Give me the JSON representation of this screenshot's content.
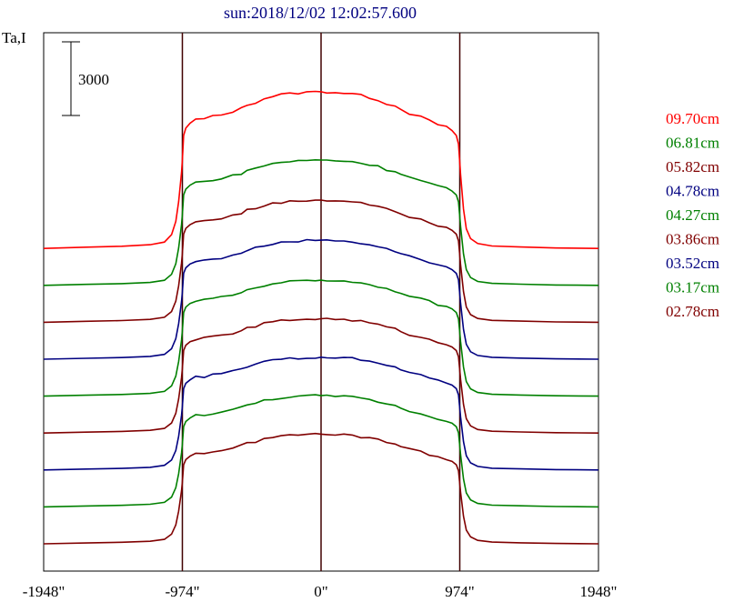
{
  "chart_data": {
    "type": "line",
    "title": "sun:2018/12/02 12:02:57.600",
    "ylabel": "Ta,I",
    "scale_bar": {
      "label": "3000",
      "value": 3000
    },
    "x_ticks": [
      -1948,
      -974,
      0,
      974,
      1948
    ],
    "x_tick_labels": [
      "-1948\"",
      "-974\"",
      "0\"",
      "974\"",
      "1948\""
    ],
    "xlim": [
      -1948,
      1948
    ],
    "vertical_lines_at": [
      -974,
      0,
      974
    ],
    "profile": {
      "x": [
        -1948,
        -1650,
        -1400,
        -1200,
        -1100,
        -1050,
        -1020,
        -1000,
        -990,
        -980,
        -974,
        -965,
        -950,
        -920,
        -880,
        -820,
        -760,
        -700,
        -620,
        -560,
        -520,
        -460,
        -400,
        -340,
        -280,
        -220,
        -160,
        -100,
        -40,
        0,
        40,
        100,
        160,
        220,
        280,
        340,
        400,
        460,
        520,
        560,
        620,
        700,
        760,
        820,
        880,
        920,
        950,
        965,
        974,
        980,
        990,
        1000,
        1020,
        1050,
        1100,
        1200,
        1400,
        1650,
        1948
      ],
      "y": [
        0,
        50,
        90,
        150,
        260,
        560,
        1100,
        1900,
        2500,
        3100,
        3600,
        4600,
        4900,
        5100,
        5250,
        5280,
        5380,
        5430,
        5580,
        5700,
        5850,
        5950,
        6100,
        6200,
        6270,
        6300,
        6330,
        6360,
        6380,
        6380,
        6370,
        6360,
        6330,
        6300,
        6230,
        6150,
        6050,
        5900,
        5800,
        5700,
        5500,
        5350,
        5200,
        5050,
        4950,
        4800,
        4600,
        4250,
        3500,
        3000,
        2300,
        1600,
        800,
        400,
        200,
        100,
        60,
        20,
        0
      ]
    },
    "series": [
      {
        "name": "09.70cm",
        "color": "#ff0000",
        "baseline": 8,
        "amplitude": 1.0
      },
      {
        "name": "06.81cm",
        "color": "#008000",
        "baseline": 7,
        "amplitude": 0.8
      },
      {
        "name": "05.82cm",
        "color": "#800000",
        "baseline": 6,
        "amplitude": 0.78
      },
      {
        "name": "04.78cm",
        "color": "#000080",
        "baseline": 5,
        "amplitude": 0.76
      },
      {
        "name": "04.27cm",
        "color": "#008000",
        "baseline": 4,
        "amplitude": 0.74
      },
      {
        "name": "03.86cm",
        "color": "#800000",
        "baseline": 3,
        "amplitude": 0.73
      },
      {
        "name": "03.52cm",
        "color": "#000080",
        "baseline": 2,
        "amplitude": 0.72
      },
      {
        "name": "03.17cm",
        "color": "#008000",
        "baseline": 1,
        "amplitude": 0.71
      },
      {
        "name": "02.78cm",
        "color": "#800000",
        "baseline": 0,
        "amplitude": 0.7
      }
    ],
    "legend_placement": "right",
    "grid": false
  }
}
